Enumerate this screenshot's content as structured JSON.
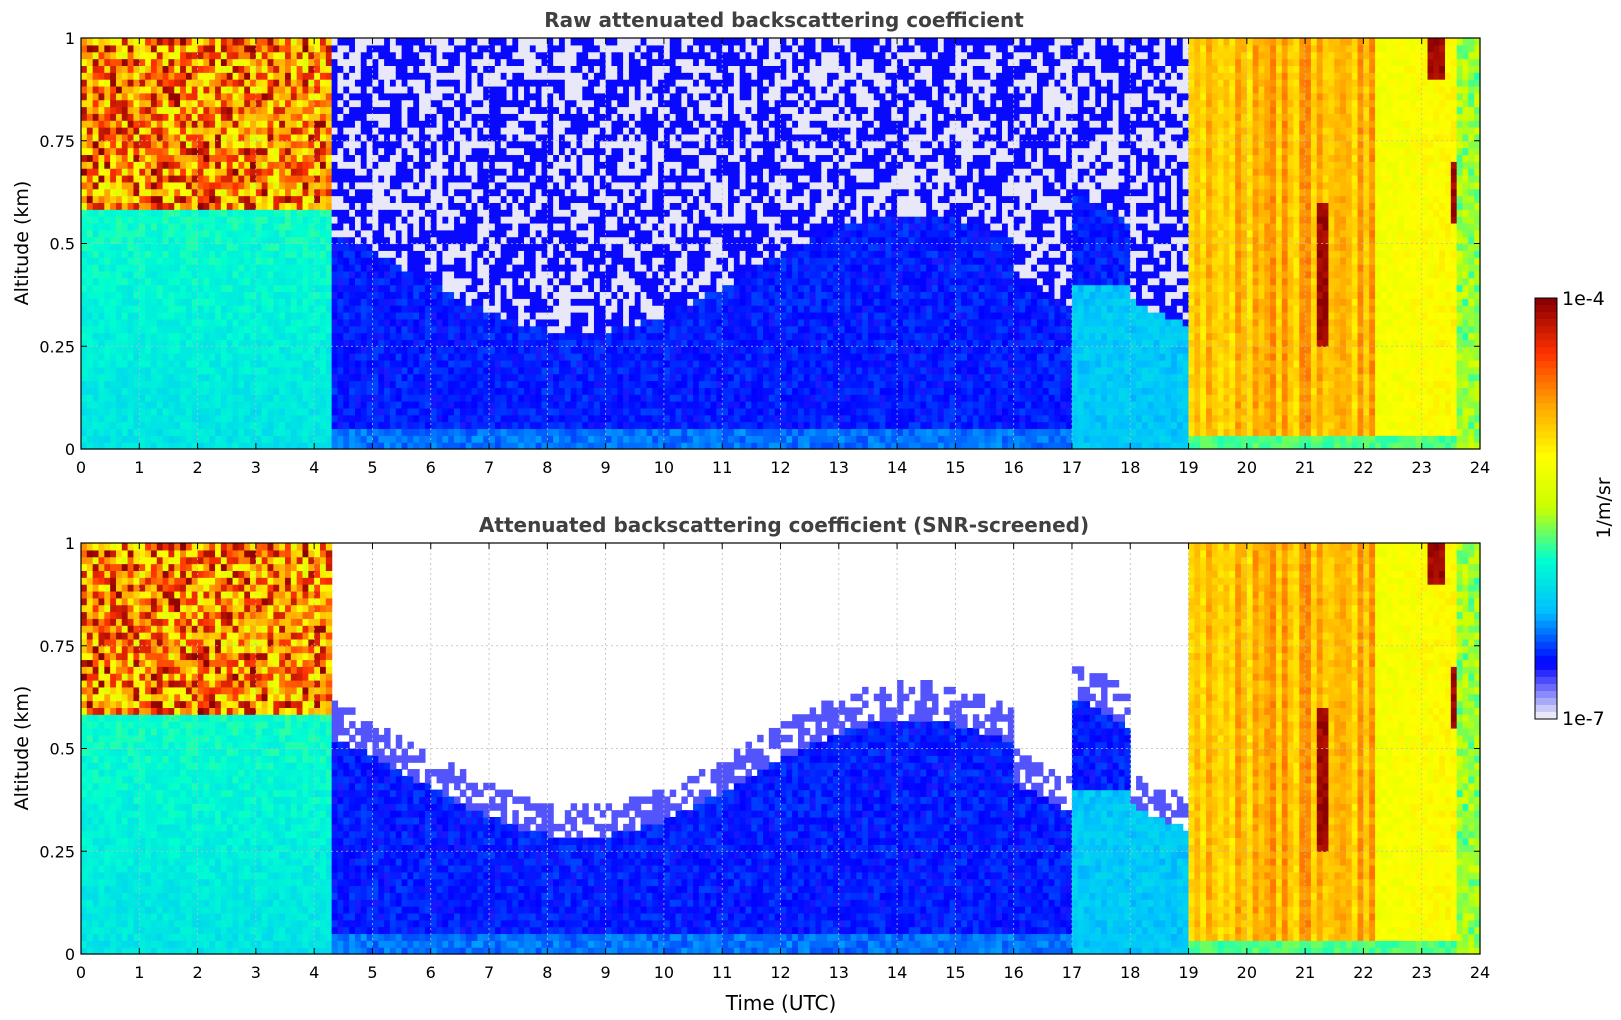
{
  "chart_data": [
    {
      "type": "heatmap",
      "title": "Raw attenuated backscattering coefficient",
      "xlabel": "",
      "ylabel": "Altitude (km)",
      "xlim": [
        0,
        24
      ],
      "ylim": [
        0,
        1
      ],
      "xticks": [
        "0",
        "1",
        "2",
        "3",
        "4",
        "5",
        "6",
        "7",
        "8",
        "9",
        "10",
        "11",
        "12",
        "13",
        "14",
        "15",
        "16",
        "17",
        "18",
        "19",
        "20",
        "21",
        "22",
        "23",
        "24"
      ],
      "yticks": [
        "0",
        "0.25",
        "0.5",
        "0.75",
        "1"
      ],
      "grid": true,
      "screened": false
    },
    {
      "type": "heatmap",
      "title": "Attenuated backscattering coefficient (SNR-screened)",
      "xlabel": "Time (UTC)",
      "ylabel": "Altitude (km)",
      "xlim": [
        0,
        24
      ],
      "ylim": [
        0,
        1
      ],
      "xticks": [
        "0",
        "1",
        "2",
        "3",
        "4",
        "5",
        "6",
        "7",
        "8",
        "9",
        "10",
        "11",
        "12",
        "13",
        "14",
        "15",
        "16",
        "17",
        "18",
        "19",
        "20",
        "21",
        "22",
        "23",
        "24"
      ],
      "yticks": [
        "0",
        "0.25",
        "0.5",
        "0.75",
        "1"
      ],
      "grid": true,
      "screened": true
    }
  ],
  "colorbar": {
    "label": "1/m/sr",
    "max_label": "1e-4",
    "min_label": "1e-7",
    "range": [
      1e-07,
      0.0001
    ],
    "scale": "log",
    "colormap": [
      "#e8e8f8",
      "#0000ff",
      "#00bfff",
      "#00ffd0",
      "#c8ff00",
      "#ffff00",
      "#ffa500",
      "#ff3000",
      "#8b0000"
    ]
  }
}
